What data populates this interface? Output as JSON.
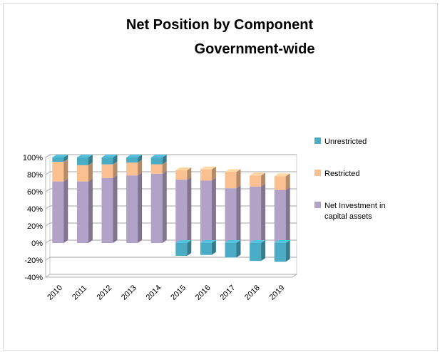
{
  "chart_data": {
    "type": "bar",
    "stacked": true,
    "percent_axis": true,
    "title": [
      "Net Position by Component",
      "Government-wide"
    ],
    "categories": [
      "2010",
      "2011",
      "2012",
      "2013",
      "2014",
      "2015",
      "2016",
      "2017",
      "2018",
      "2019"
    ],
    "series": [
      {
        "name": "Unrestricted",
        "color": "#4bacc6",
        "values": [
          5,
          9,
          8,
          6,
          8,
          -15,
          -14,
          -17,
          -21,
          -22
        ]
      },
      {
        "name": "Restricted",
        "color": "#fac090",
        "values": [
          23,
          19,
          16,
          15,
          11,
          11,
          13,
          19,
          13,
          16
        ]
      },
      {
        "name": "Net Investment in capital assets",
        "color": "#b3a2c7",
        "values": [
          72,
          72,
          76,
          79,
          81,
          74,
          73,
          64,
          66,
          62
        ]
      }
    ],
    "yticks": [
      "-40%",
      "-20%",
      "0%",
      "20%",
      "40%",
      "60%",
      "80%",
      "100%"
    ],
    "ylim": [
      -40,
      100
    ],
    "xlabel": "",
    "ylabel": "",
    "grid": true,
    "legend_position": "right"
  }
}
